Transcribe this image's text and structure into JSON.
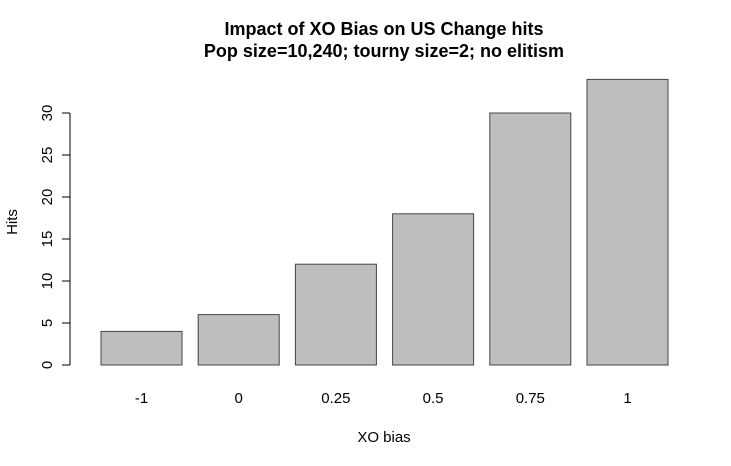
{
  "chart_data": {
    "type": "bar",
    "title": "Impact of XO Bias on US Change hits",
    "subtitle": "Pop size=10,240; tourny size=2; no elitism",
    "xlabel": "XO bias",
    "ylabel": "Hits",
    "categories": [
      "-1",
      "0",
      "0.25",
      "0.5",
      "0.75",
      "1"
    ],
    "values": [
      4,
      6,
      12,
      18,
      30,
      34
    ],
    "yticks": [
      0,
      5,
      10,
      15,
      20,
      25,
      30
    ],
    "ylim": [
      0,
      34
    ],
    "grid": false,
    "legend": "none",
    "bar_color": "#bebebe",
    "bar_border_color": "#444444",
    "axis_color": "#000000"
  }
}
